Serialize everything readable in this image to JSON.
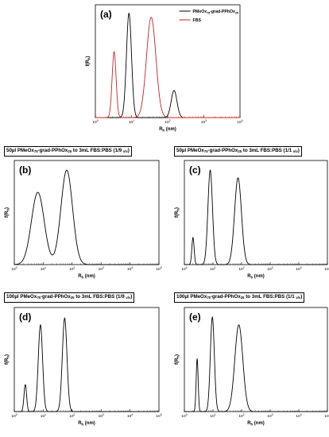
{
  "chart_data": [
    {
      "type": "line",
      "panel_label": "(a)",
      "title": "",
      "xlabel": "R_h (nm)",
      "ylabel": "f(R_h)",
      "xscale": "log",
      "xlim": [
        1,
        10000
      ],
      "x_tick_labels": [
        "10^0",
        "10^1",
        "10^2",
        "10^3",
        "10^4"
      ],
      "legend_position": "top-right",
      "series": [
        {
          "name": "PMeOx75-grad-PPhOx25",
          "color": "#000000",
          "peaks": [
            {
              "center": 8.5,
              "height": 1.0,
              "width": 0.07
            },
            {
              "center": 150,
              "height": 0.26,
              "width": 0.08
            }
          ]
        },
        {
          "name": "FBS",
          "color": "#cc2222",
          "peaks": [
            {
              "center": 3.3,
              "height": 0.63,
              "width": 0.055
            },
            {
              "center": 35,
              "height": 0.96,
              "width": 0.13
            }
          ]
        }
      ]
    },
    {
      "type": "line",
      "panel_label": "(b)",
      "title": "50µl PMeOx75-grad-PPhOx25 to 3mL FBS:PBS (1/9 v/v)",
      "xlabel": "R_h (nm)",
      "ylabel": "f(R_h)",
      "xscale": "log",
      "xlim": [
        1,
        100000
      ],
      "x_tick_labels": [
        "10^0",
        "10^1",
        "10^2",
        "10^3",
        "10^4",
        "10^5"
      ],
      "series": [
        {
          "name": "",
          "color": "#000000",
          "peaks": [
            {
              "center": 6.5,
              "height": 0.75,
              "width": 0.22
            },
            {
              "center": 65,
              "height": 0.98,
              "width": 0.2
            }
          ]
        }
      ]
    },
    {
      "type": "line",
      "panel_label": "(c)",
      "title": "50µl PMeOx75-grad-PPhOx25 to 3mL FBS:PBS (1/1 v/v)",
      "xlabel": "R_h (nm)",
      "ylabel": "f(R_h)",
      "xscale": "log",
      "xlim": [
        1,
        100000
      ],
      "x_tick_labels": [
        "10^0",
        "10^1",
        "10^2",
        "10^3",
        "10^4",
        "10^5"
      ],
      "series": [
        {
          "name": "",
          "color": "#000000",
          "peaks": [
            {
              "center": 2.0,
              "height": 0.28,
              "width": 0.04
            },
            {
              "center": 8.0,
              "height": 0.98,
              "width": 0.08
            },
            {
              "center": 75,
              "height": 0.9,
              "width": 0.12
            }
          ]
        }
      ]
    },
    {
      "type": "line",
      "panel_label": "(d)",
      "title": "100µl PMeOx75-grad-PPhOx25 to 3mL FBS:PBS (1/9 v/v)",
      "xlabel": "R_h (nm)",
      "ylabel": "f(R_h)",
      "xscale": "log",
      "xlim": [
        1,
        100000
      ],
      "x_tick_labels": [
        "10^0",
        "10^1",
        "10^2",
        "10^3",
        "10^4",
        "10^5"
      ],
      "series": [
        {
          "name": "",
          "color": "#000000",
          "peaks": [
            {
              "center": 2.4,
              "height": 0.28,
              "width": 0.045
            },
            {
              "center": 8.0,
              "height": 0.9,
              "width": 0.075
            },
            {
              "center": 55,
              "height": 0.97,
              "width": 0.08
            }
          ]
        }
      ]
    },
    {
      "type": "line",
      "panel_label": "(e)",
      "title": "100µl PMeOx75-grad-PPhOx25 to 3mL FBS:PBS (1/1 v/v)",
      "xlabel": "R_h (nm)",
      "ylabel": "f(R_h)",
      "xscale": "log",
      "xlim": [
        1,
        100000
      ],
      "x_tick_labels": [
        "10^0",
        "10^1",
        "10^2",
        "10^3",
        "10^4",
        "10^5"
      ],
      "series": [
        {
          "name": "",
          "color": "#000000",
          "peaks": [
            {
              "center": 2.8,
              "height": 0.55,
              "width": 0.035
            },
            {
              "center": 9.5,
              "height": 0.98,
              "width": 0.07
            },
            {
              "center": 80,
              "height": 0.9,
              "width": 0.14
            }
          ]
        }
      ]
    }
  ]
}
